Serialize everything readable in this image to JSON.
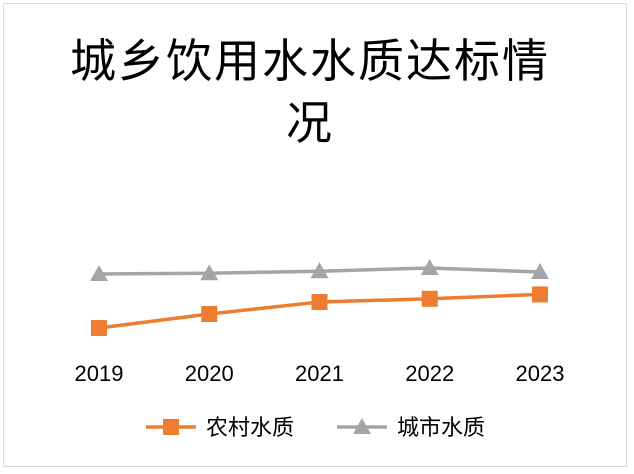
{
  "chart_data": {
    "type": "line",
    "title": "城乡饮用水水质达标情况",
    "categories": [
      "2019",
      "2020",
      "2021",
      "2022",
      "2023"
    ],
    "series": [
      {
        "name": "农村水质",
        "values": [
          83,
          86.5,
          89.5,
          90.3,
          91.4
        ],
        "color": "#ed7d31",
        "marker": "square"
      },
      {
        "name": "城市水质",
        "values": [
          96.5,
          96.7,
          97.2,
          98,
          97
        ],
        "color": "#a5a5a5",
        "marker": "triangle"
      }
    ],
    "ylim": [
      50,
      130
    ],
    "grid": false,
    "legend_position": "bottom"
  }
}
